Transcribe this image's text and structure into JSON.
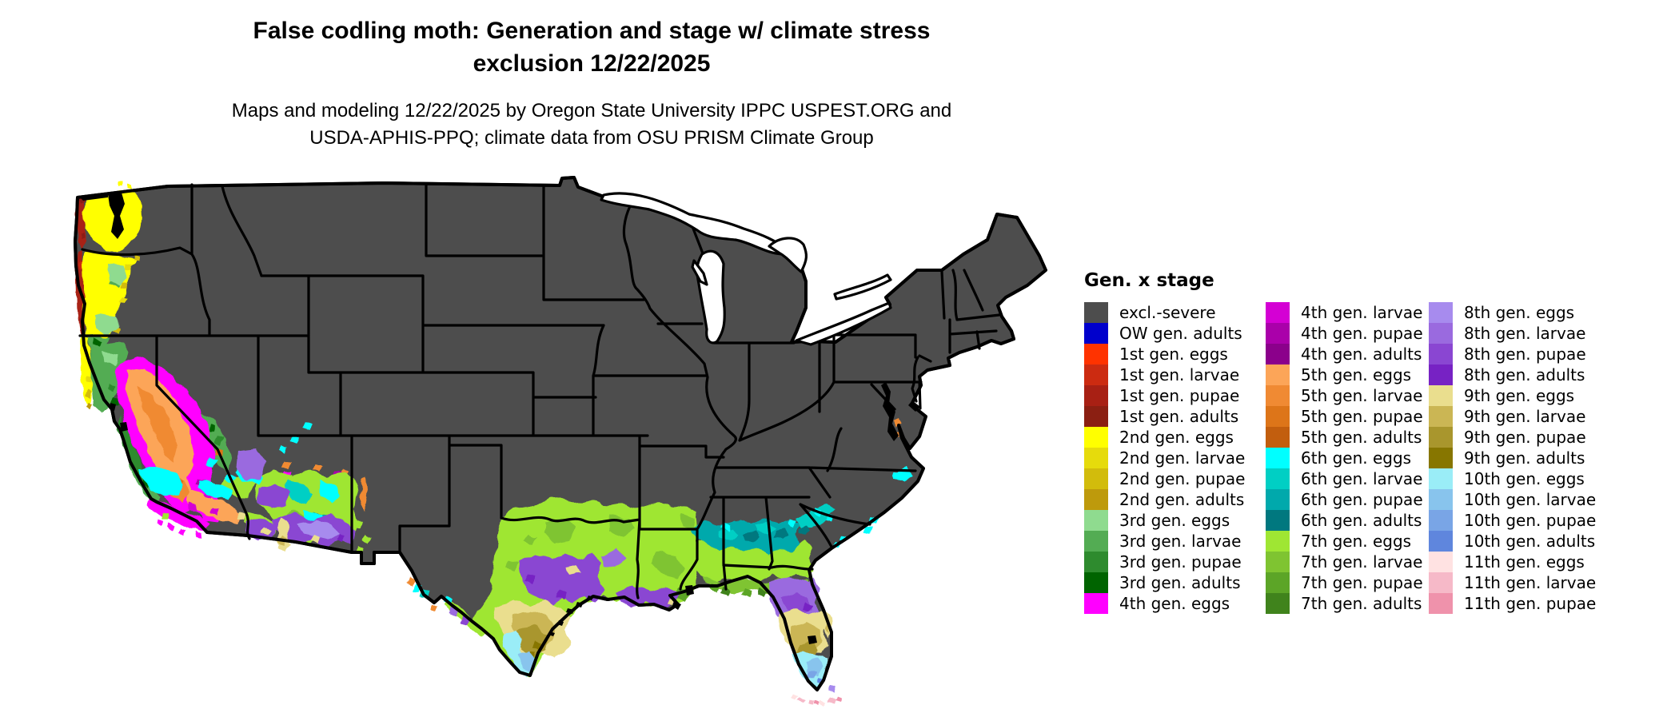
{
  "header": {
    "title_line1": "False codling moth: Generation and stage w/ climate stress",
    "title_line2": "exclusion 12/22/2025",
    "subtitle_line1": "Maps and modeling 12/22/2025 by Oregon State University IPPC USPEST.ORG and",
    "subtitle_line2": "USDA-APHIS-PPQ; climate data from OSU PRISM Climate Group"
  },
  "legend": {
    "title": "Gen. x stage",
    "columns": [
      [
        {
          "key": "excl",
          "label": "excl.-severe",
          "color": "#4D4D4D"
        },
        {
          "key": "ow_adults",
          "label": "OW gen. adults",
          "color": "#0000CC"
        },
        {
          "key": "g1_eggs",
          "label": "1st gen. eggs",
          "color": "#FF3300"
        },
        {
          "key": "g1_larvae",
          "label": "1st gen. larvae",
          "color": "#CC2B11"
        },
        {
          "key": "g1_pupae",
          "label": "1st gen. pupae",
          "color": "#A82014"
        },
        {
          "key": "g1_adults",
          "label": "1st gen. adults",
          "color": "#8B1F12"
        },
        {
          "key": "g2_eggs",
          "label": "2nd gen. eggs",
          "color": "#FFFF00"
        },
        {
          "key": "g2_larvae",
          "label": "2nd gen. larvae",
          "color": "#E6DB0C"
        },
        {
          "key": "g2_pupae",
          "label": "2nd gen. pupae",
          "color": "#D2BC0C"
        },
        {
          "key": "g2_adults",
          "label": "2nd gen. adults",
          "color": "#BE9A0C"
        },
        {
          "key": "g3_eggs",
          "label": "3rd gen. eggs",
          "color": "#8FDB8F"
        },
        {
          "key": "g3_larvae",
          "label": "3rd gen. larvae",
          "color": "#53AC53"
        },
        {
          "key": "g3_pupae",
          "label": "3rd gen. pupae",
          "color": "#2E8B2E"
        },
        {
          "key": "g3_adults",
          "label": "3rd gen. adults",
          "color": "#006400"
        },
        {
          "key": "g4_eggs",
          "label": "4th gen. eggs",
          "color": "#FF00FF"
        }
      ],
      [
        {
          "key": "g4_larvae",
          "label": "4th gen. larvae",
          "color": "#D400D4"
        },
        {
          "key": "g4_pupae",
          "label": "4th gen. pupae",
          "color": "#AA00AA"
        },
        {
          "key": "g4_adults",
          "label": "4th gen. adults",
          "color": "#8B008B"
        },
        {
          "key": "g5_eggs",
          "label": "5th gen. eggs",
          "color": "#FCA558"
        },
        {
          "key": "g5_larvae",
          "label": "5th gen. larvae",
          "color": "#F08A33"
        },
        {
          "key": "g5_pupae",
          "label": "5th gen. pupae",
          "color": "#DD7519"
        },
        {
          "key": "g5_adults",
          "label": "5th gen. adults",
          "color": "#C25E0E"
        },
        {
          "key": "g6_eggs",
          "label": "6th gen. eggs",
          "color": "#00FFFF"
        },
        {
          "key": "g6_larvae",
          "label": "6th gen. larvae",
          "color": "#00CFC4"
        },
        {
          "key": "g6_pupae",
          "label": "6th gen. pupae",
          "color": "#00A9AC"
        },
        {
          "key": "g6_adults",
          "label": "6th gen. adults",
          "color": "#00787F"
        },
        {
          "key": "g7_eggs",
          "label": "7th gen. eggs",
          "color": "#9FE633"
        },
        {
          "key": "g7_larvae",
          "label": "7th gen. larvae",
          "color": "#7FC431"
        },
        {
          "key": "g7_pupae",
          "label": "7th gen. pupae",
          "color": "#5CA527"
        },
        {
          "key": "g7_adults",
          "label": "7th gen. adults",
          "color": "#40831C"
        }
      ],
      [
        {
          "key": "g8_eggs",
          "label": "8th gen. eggs",
          "color": "#A78BEE"
        },
        {
          "key": "g8_larvae",
          "label": "8th gen. larvae",
          "color": "#9A6ADF"
        },
        {
          "key": "g8_pupae",
          "label": "8th gen. pupae",
          "color": "#8A46D2"
        },
        {
          "key": "g8_adults",
          "label": "8th gen. adults",
          "color": "#7722C4"
        },
        {
          "key": "g9_eggs",
          "label": "9th gen. eggs",
          "color": "#EADE8E"
        },
        {
          "key": "g9_larvae",
          "label": "9th gen. larvae",
          "color": "#CBB654"
        },
        {
          "key": "g9_pupae",
          "label": "9th gen. pupae",
          "color": "#A9962D"
        },
        {
          "key": "g9_adults",
          "label": "9th gen. adults",
          "color": "#877600"
        },
        {
          "key": "g10_eggs",
          "label": "10th gen. eggs",
          "color": "#9AEDF7"
        },
        {
          "key": "g10_larvae",
          "label": "10th gen. larvae",
          "color": "#88C4ED"
        },
        {
          "key": "g10_pupae",
          "label": "10th gen. pupae",
          "color": "#79A5E6"
        },
        {
          "key": "g10_adults",
          "label": "10th gen. adults",
          "color": "#5F86DD"
        },
        {
          "key": "g11_eggs",
          "label": "11th gen. eggs",
          "color": "#FFE2E2"
        },
        {
          "key": "g11_larvae",
          "label": "11th gen. larvae",
          "color": "#F6B9C8"
        },
        {
          "key": "g11_pupae",
          "label": "11th gen. pupae",
          "color": "#EF92AB"
        }
      ]
    ]
  },
  "map": {
    "base_land_color": "#4D4D4D",
    "border_color": "#000000",
    "water_color": "#000000",
    "lake_color": "#FFFFFF",
    "regions": [
      {
        "name": "region-pnw-coast-strip",
        "key": "g1_pupae"
      },
      {
        "name": "region-coast-red-flecks",
        "key": "g1_larvae"
      },
      {
        "name": "region-coast-darkred-flecks",
        "key": "g1_adults"
      },
      {
        "name": "region-pnw-yellow-lowlands",
        "key": "g2_eggs"
      },
      {
        "name": "region-yellow-flecks-larvae",
        "key": "g2_larvae"
      },
      {
        "name": "region-gold-flecks-pupae",
        "key": "g2_pupae"
      },
      {
        "name": "region-gold-flecks-adults",
        "key": "g2_adults"
      },
      {
        "name": "region-norcal-green-masses",
        "key": "g3_larvae"
      },
      {
        "name": "region-norcal-lightgreen-patches",
        "key": "g3_eggs"
      },
      {
        "name": "region-norcal-darkgreen-patches",
        "key": "g3_pupae"
      },
      {
        "name": "region-darkestgreen-flecks",
        "key": "g3_adults"
      },
      {
        "name": "region-ca-magenta-ring",
        "key": "g4_eggs"
      },
      {
        "name": "region-magenta-dark-flecks",
        "key": "g4_larvae"
      },
      {
        "name": "region-magenta-darker-flecks",
        "key": "g4_pupae"
      },
      {
        "name": "region-central-valley-orange",
        "key": "g5_eggs"
      },
      {
        "name": "region-orange-cores",
        "key": "g5_larvae"
      },
      {
        "name": "region-orange-dark-flecks",
        "key": "g5_pupae"
      },
      {
        "name": "region-delmarva-orange-spots",
        "key": "g5_larvae"
      },
      {
        "name": "region-yellowgreen-masses",
        "key": "g7_eggs"
      },
      {
        "name": "region-green-patches",
        "key": "g7_larvae"
      },
      {
        "name": "region-gulf-darkgreen-flecks",
        "key": "g7_pupae"
      },
      {
        "name": "region-gulf-darkestgreen-flecks",
        "key": "g7_adults"
      },
      {
        "name": "region-se-teal-band",
        "key": "g6_pupae"
      },
      {
        "name": "region-teal-light-patches",
        "key": "g6_larvae"
      },
      {
        "name": "region-teal-dark-flecks",
        "key": "g6_adults"
      },
      {
        "name": "region-cyan-patches",
        "key": "g6_eggs"
      },
      {
        "name": "region-atlantic-cyan-spots",
        "key": "g6_eggs"
      },
      {
        "name": "region-lightpurple-blobs",
        "key": "g8_larvae"
      },
      {
        "name": "region-purple-belts",
        "key": "g8_pupae"
      },
      {
        "name": "region-lavender-patches",
        "key": "g8_eggs"
      },
      {
        "name": "region-purple-dark-flecks",
        "key": "g8_adults"
      },
      {
        "name": "region-khaki-zones",
        "key": "g9_eggs"
      },
      {
        "name": "region-khaki-dark-zones",
        "key": "g9_larvae"
      },
      {
        "name": "region-olive-zones",
        "key": "g9_pupae"
      },
      {
        "name": "region-olive-dark-flecks",
        "key": "g9_adults"
      },
      {
        "name": "region-lightblue-zones",
        "key": "g10_eggs"
      },
      {
        "name": "region-blue-patches",
        "key": "g10_larvae"
      },
      {
        "name": "region-blue-pupae-flecks",
        "key": "g10_pupae"
      },
      {
        "name": "region-blue-adults-flecks",
        "key": "g10_adults"
      },
      {
        "name": "region-keys-pink-eggs",
        "key": "g11_eggs"
      },
      {
        "name": "region-keys-pink-larvae",
        "key": "g11_larvae"
      },
      {
        "name": "region-keys-pink-pupae",
        "key": "g11_pupae"
      }
    ]
  }
}
